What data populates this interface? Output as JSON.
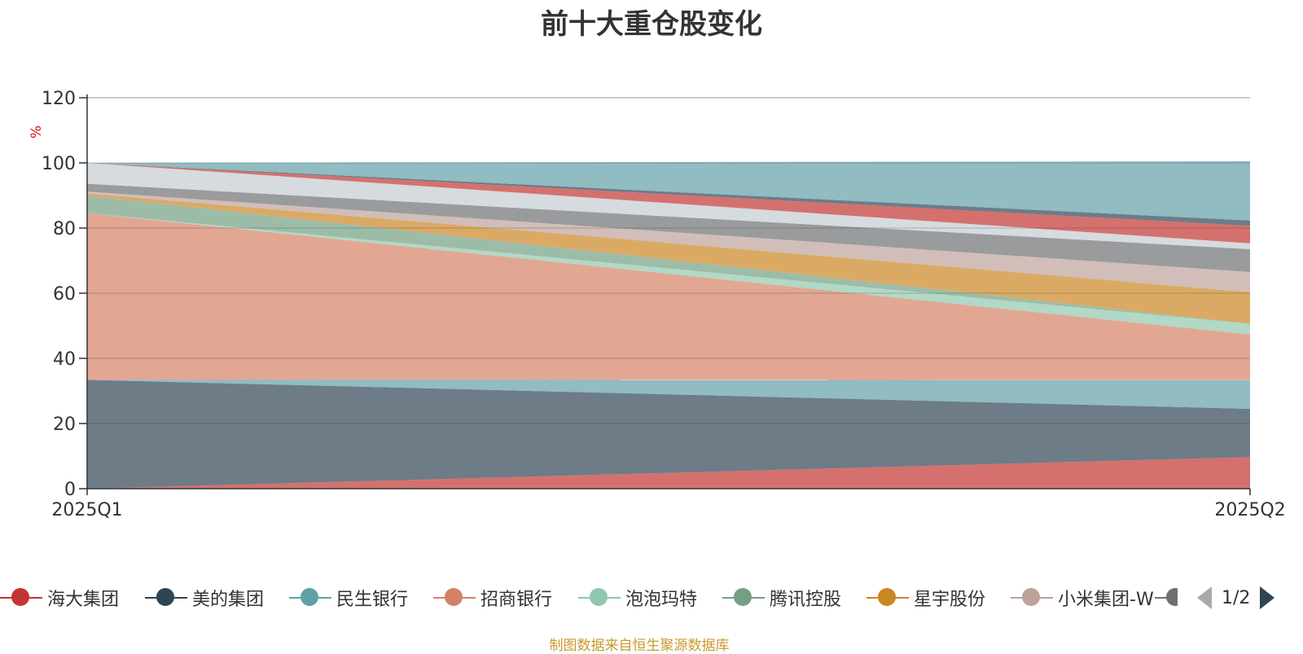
{
  "chart_data": {
    "type": "area",
    "title": "前十大重仓股变化",
    "ylabel": "%",
    "ylim": [
      0,
      120
    ],
    "yticks": [
      0,
      20,
      40,
      60,
      80,
      100,
      120
    ],
    "categories": [
      "2025Q1",
      "2025Q2"
    ],
    "stacked": true,
    "grid": true,
    "legend_position": "bottom",
    "series": [
      {
        "name": "海大集团",
        "color": "#c23531",
        "values": [
          0,
          9.7
        ]
      },
      {
        "name": "美的集团",
        "color": "#2f4554",
        "values": [
          33.4,
          14.8
        ]
      },
      {
        "name": "民生银行",
        "color": "#61a0a8",
        "values": [
          0,
          8.8
        ]
      },
      {
        "name": "招商银行",
        "color": "#d48265",
        "values": [
          51.2,
          14.0
        ]
      },
      {
        "name": "泡泡玛特",
        "color": "#91c7ae",
        "values": [
          0,
          3.3
        ]
      },
      {
        "name": "腾讯控股",
        "color": "#749f83",
        "values": [
          5.4,
          0
        ]
      },
      {
        "name": "星宇股份",
        "color": "#ca8622",
        "values": [
          0.6,
          9.7
        ]
      },
      {
        "name": "小米集团-W",
        "color": "#bda29a",
        "values": [
          0.6,
          6.2
        ]
      },
      {
        "name": "",
        "color": "#6e7074",
        "values": [
          2.4,
          7.0
        ]
      },
      {
        "name": "",
        "color": "#c4ccd3",
        "values": [
          6.4,
          1.8
        ]
      },
      {
        "name": "",
        "color": "#c23531",
        "values": [
          0,
          5.4
        ]
      },
      {
        "name": "",
        "color": "#2f4554",
        "values": [
          0,
          1.6
        ]
      },
      {
        "name": "",
        "color": "#61a0a8",
        "values": [
          0,
          18.2
        ]
      }
    ]
  },
  "legend": {
    "items": [
      "海大集团",
      "美的集团",
      "民生银行",
      "招商银行",
      "泡泡玛特",
      "腾讯控股",
      "星宇股份",
      "小米集团-W"
    ],
    "pager": "1/2"
  },
  "source_note": "制图数据来自恒生聚源数据库"
}
